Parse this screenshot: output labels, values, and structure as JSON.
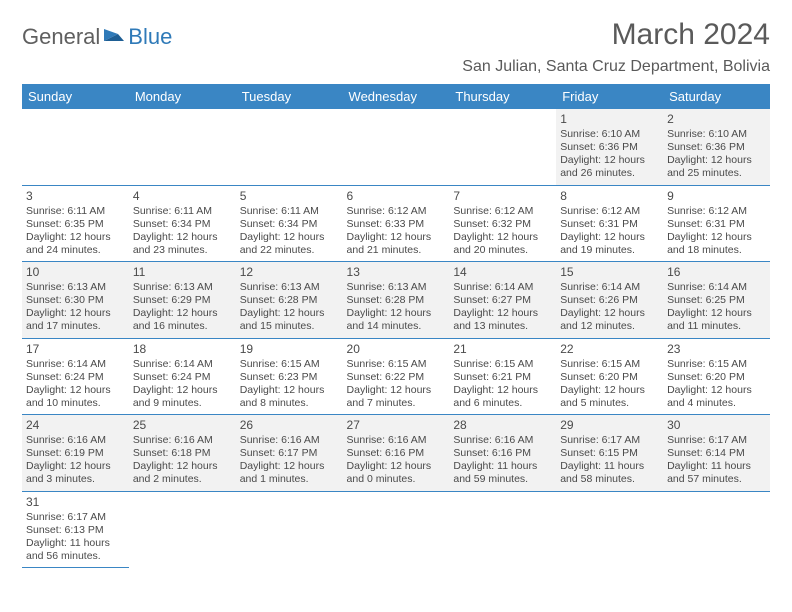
{
  "logo": {
    "text1": "General",
    "text2": "Blue"
  },
  "title": "March 2024",
  "location": "San Julian, Santa Cruz Department, Bolivia",
  "colors": {
    "header_bg": "#3a86c4",
    "header_text": "#ffffff",
    "cell_border": "#3a86c4",
    "shaded_bg": "#f2f2f2",
    "body_text": "#4a4a4a",
    "logo_gray": "#5f5f5f",
    "logo_blue": "#2f7ab8"
  },
  "day_headers": [
    "Sunday",
    "Monday",
    "Tuesday",
    "Wednesday",
    "Thursday",
    "Friday",
    "Saturday"
  ],
  "weeks": [
    [
      null,
      null,
      null,
      null,
      null,
      {
        "n": "1",
        "sunrise": "6:10 AM",
        "sunset": "6:36 PM",
        "dl_h": "12",
        "dl_m": "26"
      },
      {
        "n": "2",
        "sunrise": "6:10 AM",
        "sunset": "6:36 PM",
        "dl_h": "12",
        "dl_m": "25"
      }
    ],
    [
      {
        "n": "3",
        "sunrise": "6:11 AM",
        "sunset": "6:35 PM",
        "dl_h": "12",
        "dl_m": "24"
      },
      {
        "n": "4",
        "sunrise": "6:11 AM",
        "sunset": "6:34 PM",
        "dl_h": "12",
        "dl_m": "23"
      },
      {
        "n": "5",
        "sunrise": "6:11 AM",
        "sunset": "6:34 PM",
        "dl_h": "12",
        "dl_m": "22"
      },
      {
        "n": "6",
        "sunrise": "6:12 AM",
        "sunset": "6:33 PM",
        "dl_h": "12",
        "dl_m": "21"
      },
      {
        "n": "7",
        "sunrise": "6:12 AM",
        "sunset": "6:32 PM",
        "dl_h": "12",
        "dl_m": "20"
      },
      {
        "n": "8",
        "sunrise": "6:12 AM",
        "sunset": "6:31 PM",
        "dl_h": "12",
        "dl_m": "19"
      },
      {
        "n": "9",
        "sunrise": "6:12 AM",
        "sunset": "6:31 PM",
        "dl_h": "12",
        "dl_m": "18"
      }
    ],
    [
      {
        "n": "10",
        "sunrise": "6:13 AM",
        "sunset": "6:30 PM",
        "dl_h": "12",
        "dl_m": "17"
      },
      {
        "n": "11",
        "sunrise": "6:13 AM",
        "sunset": "6:29 PM",
        "dl_h": "12",
        "dl_m": "16"
      },
      {
        "n": "12",
        "sunrise": "6:13 AM",
        "sunset": "6:28 PM",
        "dl_h": "12",
        "dl_m": "15"
      },
      {
        "n": "13",
        "sunrise": "6:13 AM",
        "sunset": "6:28 PM",
        "dl_h": "12",
        "dl_m": "14"
      },
      {
        "n": "14",
        "sunrise": "6:14 AM",
        "sunset": "6:27 PM",
        "dl_h": "12",
        "dl_m": "13"
      },
      {
        "n": "15",
        "sunrise": "6:14 AM",
        "sunset": "6:26 PM",
        "dl_h": "12",
        "dl_m": "12"
      },
      {
        "n": "16",
        "sunrise": "6:14 AM",
        "sunset": "6:25 PM",
        "dl_h": "12",
        "dl_m": "11"
      }
    ],
    [
      {
        "n": "17",
        "sunrise": "6:14 AM",
        "sunset": "6:24 PM",
        "dl_h": "12",
        "dl_m": "10"
      },
      {
        "n": "18",
        "sunrise": "6:14 AM",
        "sunset": "6:24 PM",
        "dl_h": "12",
        "dl_m": "9"
      },
      {
        "n": "19",
        "sunrise": "6:15 AM",
        "sunset": "6:23 PM",
        "dl_h": "12",
        "dl_m": "8"
      },
      {
        "n": "20",
        "sunrise": "6:15 AM",
        "sunset": "6:22 PM",
        "dl_h": "12",
        "dl_m": "7"
      },
      {
        "n": "21",
        "sunrise": "6:15 AM",
        "sunset": "6:21 PM",
        "dl_h": "12",
        "dl_m": "6"
      },
      {
        "n": "22",
        "sunrise": "6:15 AM",
        "sunset": "6:20 PM",
        "dl_h": "12",
        "dl_m": "5"
      },
      {
        "n": "23",
        "sunrise": "6:15 AM",
        "sunset": "6:20 PM",
        "dl_h": "12",
        "dl_m": "4"
      }
    ],
    [
      {
        "n": "24",
        "sunrise": "6:16 AM",
        "sunset": "6:19 PM",
        "dl_h": "12",
        "dl_m": "3"
      },
      {
        "n": "25",
        "sunrise": "6:16 AM",
        "sunset": "6:18 PM",
        "dl_h": "12",
        "dl_m": "2"
      },
      {
        "n": "26",
        "sunrise": "6:16 AM",
        "sunset": "6:17 PM",
        "dl_h": "12",
        "dl_m": "1"
      },
      {
        "n": "27",
        "sunrise": "6:16 AM",
        "sunset": "6:16 PM",
        "dl_h": "12",
        "dl_m": "0"
      },
      {
        "n": "28",
        "sunrise": "6:16 AM",
        "sunset": "6:16 PM",
        "dl_h": "11",
        "dl_m": "59"
      },
      {
        "n": "29",
        "sunrise": "6:17 AM",
        "sunset": "6:15 PM",
        "dl_h": "11",
        "dl_m": "58"
      },
      {
        "n": "30",
        "sunrise": "6:17 AM",
        "sunset": "6:14 PM",
        "dl_h": "11",
        "dl_m": "57"
      }
    ],
    [
      {
        "n": "31",
        "sunrise": "6:17 AM",
        "sunset": "6:13 PM",
        "dl_h": "11",
        "dl_m": "56"
      },
      null,
      null,
      null,
      null,
      null,
      null
    ]
  ],
  "labels": {
    "sunrise": "Sunrise:",
    "sunset": "Sunset:",
    "daylight_prefix": "Daylight:",
    "hours_word": "hours",
    "and_word": "and",
    "minutes_word": "minutes."
  }
}
